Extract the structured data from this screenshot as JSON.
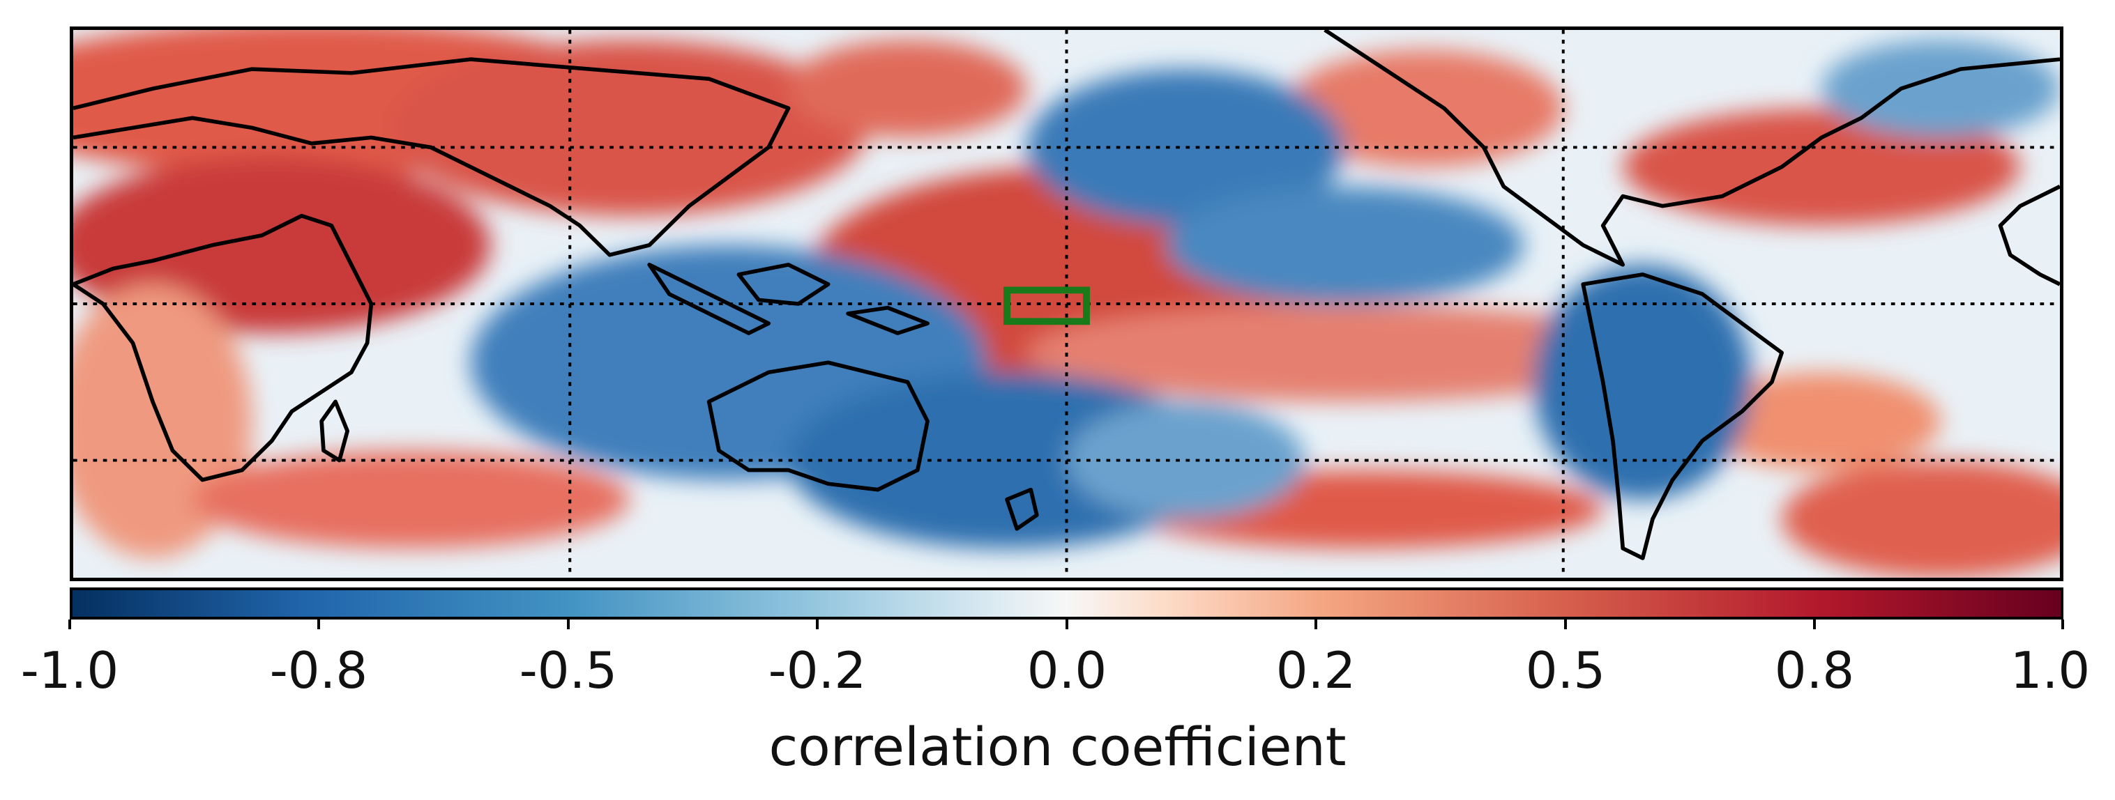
{
  "figure": {
    "colorbar": {
      "label": "correlation coefficient",
      "ticks": [
        "-1.0",
        "-0.8",
        "-0.5",
        "-0.2",
        "0.0",
        "0.2",
        "0.5",
        "0.8",
        "1.0"
      ],
      "colors": [
        "#053061",
        "#2166ac",
        "#4393c3",
        "#92c5de",
        "#d1e5f0",
        "#f7f7f7",
        "#fddbc7",
        "#f4a582",
        "#d6604d",
        "#b2182b",
        "#67001f"
      ]
    },
    "highlight_box_color": "#1a7a1a"
  }
}
